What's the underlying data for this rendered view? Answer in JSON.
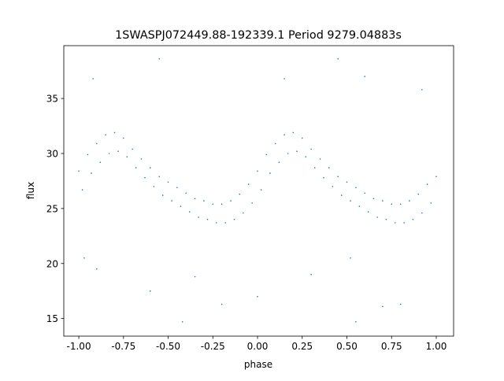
{
  "chart_data": {
    "type": "scatter",
    "title": "1SWASPJ072449.88-192339.1 Period 9279.04883s",
    "xlabel": "phase",
    "ylabel": "flux",
    "xlim": [
      -1.084,
      1.097
    ],
    "ylim": [
      13.4,
      39.8
    ],
    "xticks": [
      "-1.00",
      "-0.75",
      "-0.50",
      "-0.25",
      "0.00",
      "0.25",
      "0.50",
      "0.75",
      "1.00"
    ],
    "xtick_values": [
      -1,
      -0.75,
      -0.5,
      -0.25,
      0,
      0.25,
      0.5,
      0.75,
      1
    ],
    "yticks": [
      "15",
      "20",
      "25",
      "30",
      "35"
    ],
    "ytick_values": [
      15,
      20,
      25,
      30,
      35
    ],
    "grid": false,
    "marker_color": "#1f77b4",
    "points": [
      [
        -1.0,
        28.4
      ],
      [
        -0.98,
        26.7
      ],
      [
        -0.95,
        29.9
      ],
      [
        -0.93,
        28.2
      ],
      [
        -0.9,
        30.9
      ],
      [
        -0.88,
        29.2
      ],
      [
        -0.85,
        31.7
      ],
      [
        -0.83,
        30.0
      ],
      [
        -0.8,
        31.9
      ],
      [
        -0.78,
        30.2
      ],
      [
        -0.75,
        31.4
      ],
      [
        -0.73,
        29.7
      ],
      [
        -0.7,
        30.4
      ],
      [
        -0.68,
        28.7
      ],
      [
        -0.65,
        29.5
      ],
      [
        -0.63,
        27.8
      ],
      [
        -0.6,
        28.7
      ],
      [
        -0.58,
        27.0
      ],
      [
        -0.55,
        27.9
      ],
      [
        -0.53,
        26.2
      ],
      [
        -0.5,
        27.4
      ],
      [
        -0.48,
        25.7
      ],
      [
        -0.45,
        26.9
      ],
      [
        -0.43,
        25.2
      ],
      [
        -0.4,
        26.4
      ],
      [
        -0.38,
        24.7
      ],
      [
        -0.35,
        25.9
      ],
      [
        -0.33,
        24.2
      ],
      [
        -0.3,
        25.7
      ],
      [
        -0.28,
        24.0
      ],
      [
        -0.25,
        25.4
      ],
      [
        -0.23,
        23.7
      ],
      [
        -0.2,
        25.4
      ],
      [
        -0.18,
        23.7
      ],
      [
        -0.15,
        25.7
      ],
      [
        -0.13,
        24.0
      ],
      [
        -0.1,
        26.3
      ],
      [
        -0.08,
        24.6
      ],
      [
        -0.05,
        27.2
      ],
      [
        -0.03,
        25.5
      ],
      [
        0.0,
        28.4
      ],
      [
        0.02,
        26.7
      ],
      [
        0.05,
        29.9
      ],
      [
        0.07,
        28.2
      ],
      [
        0.1,
        30.9
      ],
      [
        0.12,
        29.2
      ],
      [
        0.15,
        31.7
      ],
      [
        0.17,
        30.0
      ],
      [
        0.2,
        31.9
      ],
      [
        0.22,
        30.2
      ],
      [
        0.25,
        31.4
      ],
      [
        0.27,
        29.7
      ],
      [
        0.3,
        30.4
      ],
      [
        0.32,
        28.7
      ],
      [
        0.35,
        29.5
      ],
      [
        0.37,
        27.8
      ],
      [
        0.4,
        28.7
      ],
      [
        0.42,
        27.0
      ],
      [
        0.45,
        27.9
      ],
      [
        0.47,
        26.2
      ],
      [
        0.5,
        27.4
      ],
      [
        0.52,
        25.7
      ],
      [
        0.55,
        26.9
      ],
      [
        0.57,
        25.2
      ],
      [
        0.6,
        26.4
      ],
      [
        0.62,
        24.7
      ],
      [
        0.65,
        25.9
      ],
      [
        0.67,
        24.2
      ],
      [
        0.7,
        25.7
      ],
      [
        0.72,
        24.0
      ],
      [
        0.75,
        25.4
      ],
      [
        0.77,
        23.7
      ],
      [
        0.8,
        25.4
      ],
      [
        0.82,
        23.7
      ],
      [
        0.85,
        25.7
      ],
      [
        0.87,
        24.0
      ],
      [
        0.9,
        26.3
      ],
      [
        0.92,
        24.6
      ],
      [
        0.95,
        27.2
      ],
      [
        0.97,
        25.5
      ],
      [
        1.0,
        27.9
      ],
      [
        -0.6,
        17.5
      ],
      [
        -0.35,
        18.8
      ],
      [
        -0.2,
        16.3
      ],
      [
        0.3,
        19.0
      ],
      [
        -0.97,
        20.5
      ],
      [
        -0.9,
        19.5
      ],
      [
        0.8,
        16.3
      ],
      [
        0.7,
        16.1
      ],
      [
        0.55,
        14.7
      ],
      [
        -0.42,
        14.7
      ],
      [
        -0.55,
        38.6
      ],
      [
        0.15,
        36.8
      ],
      [
        0.6,
        37.0
      ],
      [
        0.92,
        35.8
      ],
      [
        -0.92,
        36.8
      ],
      [
        0.45,
        38.6
      ],
      [
        0.0,
        17.0
      ],
      [
        0.52,
        20.5
      ]
    ]
  }
}
